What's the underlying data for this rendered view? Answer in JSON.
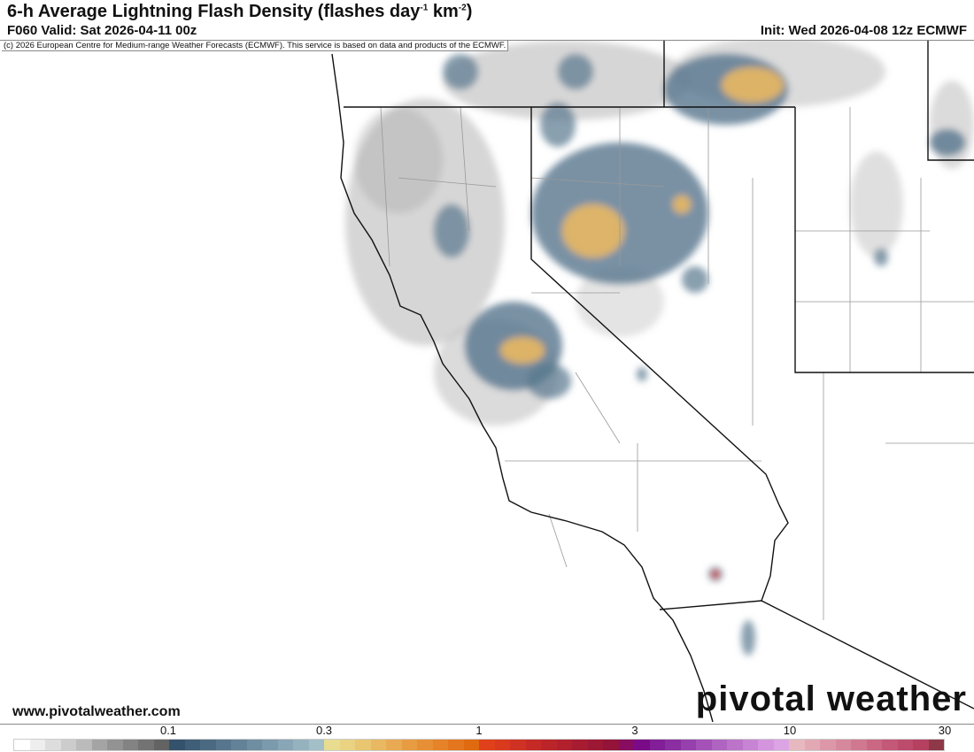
{
  "header": {
    "title_main": "6-h Average Lightning Flash Density (flashes day",
    "title_sup1": "-1",
    "title_mid": " km",
    "title_sup2": "-2",
    "title_end": ")",
    "valid": "F060 Valid: Sat 2026-04-11 00z",
    "init": "Init: Wed 2026-04-08 12z ECMWF"
  },
  "copyright": "(c) 2026 European Centre for Medium-range Weather Forecasts (ECMWF). This service is based on data and products of the ECMWF.",
  "footer": {
    "site": "www.pivotalweather.com",
    "logo": "pivotal weather"
  },
  "colorbar": {
    "ticks": [
      "0.1",
      "0.3",
      "1",
      "3",
      "10",
      "30"
    ],
    "colors": [
      "#ffffff",
      "#eeeeee",
      "#dddddd",
      "#cccccc",
      "#bbbbbb",
      "#a4a4a4",
      "#939393",
      "#838383",
      "#737373",
      "#636363",
      "#34526c",
      "#3f5e77",
      "#4b6a82",
      "#57768d",
      "#638298",
      "#6f8ea2",
      "#7b9aac",
      "#88a6b6",
      "#95b2bf",
      "#a3bfc8",
      "#e8dc90",
      "#e9d382",
      "#e8c672",
      "#e8b862",
      "#e8aa52",
      "#e89c42",
      "#e78f34",
      "#e68228",
      "#e4761e",
      "#e06a10",
      "#e0401a",
      "#d93a1e",
      "#cf3222",
      "#c52a26",
      "#bb2428",
      "#b1202c",
      "#a71c30",
      "#9d1834",
      "#931438",
      "#880c60",
      "#7a0a88",
      "#821e98",
      "#8a2ea2",
      "#9640ae",
      "#a452b8",
      "#b064c2",
      "#bc74ca",
      "#c884d4",
      "#d494de",
      "#dca4e4",
      "#e8b8c0",
      "#e2a8b4",
      "#dc98a8",
      "#d6889c",
      "#d07890",
      "#ca6884",
      "#c45878",
      "#bd4c6c",
      "#b64060",
      "#8e3848"
    ]
  },
  "map": {
    "region": "California / Nevada",
    "accent_high": "#e8b862",
    "accent_mid": "#57768d",
    "accent_low": "#a4a4a4"
  }
}
